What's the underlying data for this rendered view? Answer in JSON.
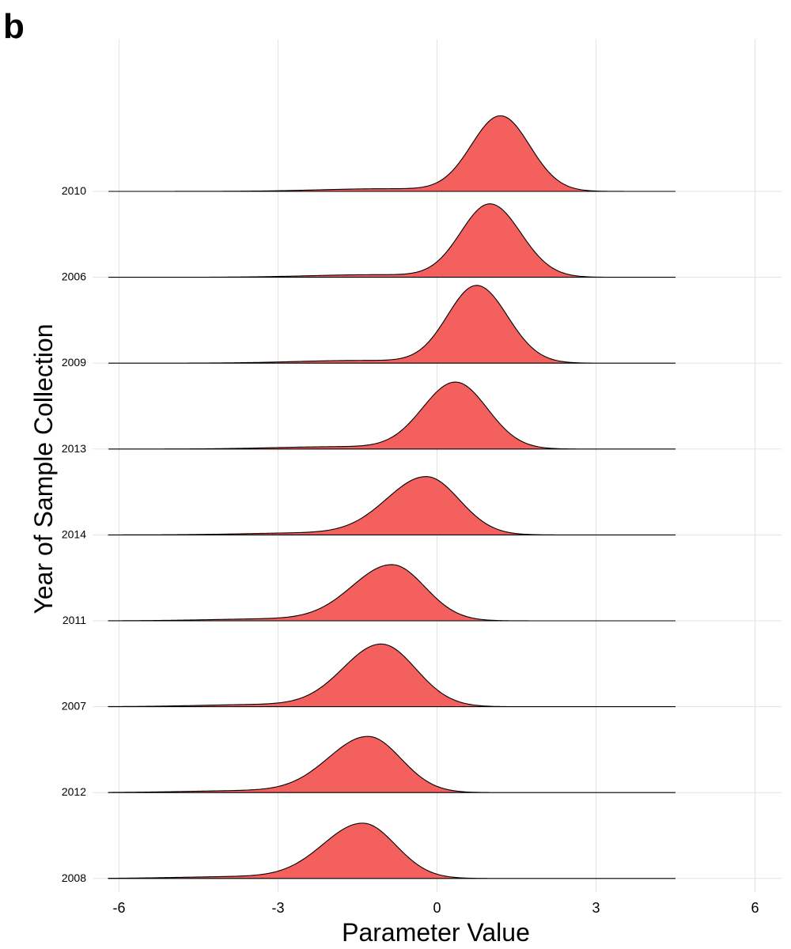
{
  "panel_label": "b",
  "chart_data": {
    "type": "ridgeline",
    "xlabel": "Parameter Value",
    "ylabel": "Year of Sample Collection",
    "xlim": [
      -6.5,
      6.5
    ],
    "x_ticks": [
      -6,
      -3,
      0,
      3,
      6
    ],
    "x_tick_labels": [
      "-6",
      "-3",
      "0",
      "3",
      "6"
    ],
    "data_x_range": [
      -6.2,
      4.5
    ],
    "fill_color": "#F4605E",
    "line_color": "#000000",
    "grid": true,
    "categories": [
      "2010",
      "2006",
      "2009",
      "2013",
      "2014",
      "2011",
      "2007",
      "2012",
      "2008"
    ],
    "series": [
      {
        "name": "2010",
        "peak": 1.2,
        "sd_left": 0.55,
        "sd_right": 0.55,
        "height": 1.75
      },
      {
        "name": "2006",
        "peak": 1.0,
        "sd_left": 0.55,
        "sd_right": 0.58,
        "height": 1.7
      },
      {
        "name": "2009",
        "peak": 0.75,
        "sd_left": 0.55,
        "sd_right": 0.58,
        "height": 1.8
      },
      {
        "name": "2013",
        "peak": 0.35,
        "sd_left": 0.62,
        "sd_right": 0.6,
        "height": 1.55
      },
      {
        "name": "2014",
        "peak": -0.2,
        "sd_left": 0.75,
        "sd_right": 0.62,
        "height": 1.35
      },
      {
        "name": "2011",
        "peak": -0.85,
        "sd_left": 0.75,
        "sd_right": 0.62,
        "height": 1.3
      },
      {
        "name": "2007",
        "peak": -1.05,
        "sd_left": 0.72,
        "sd_right": 0.65,
        "height": 1.45
      },
      {
        "name": "2012",
        "peak": -1.3,
        "sd_left": 0.75,
        "sd_right": 0.62,
        "height": 1.3
      },
      {
        "name": "2008",
        "peak": -1.4,
        "sd_left": 0.75,
        "sd_right": 0.62,
        "height": 1.28
      }
    ]
  }
}
